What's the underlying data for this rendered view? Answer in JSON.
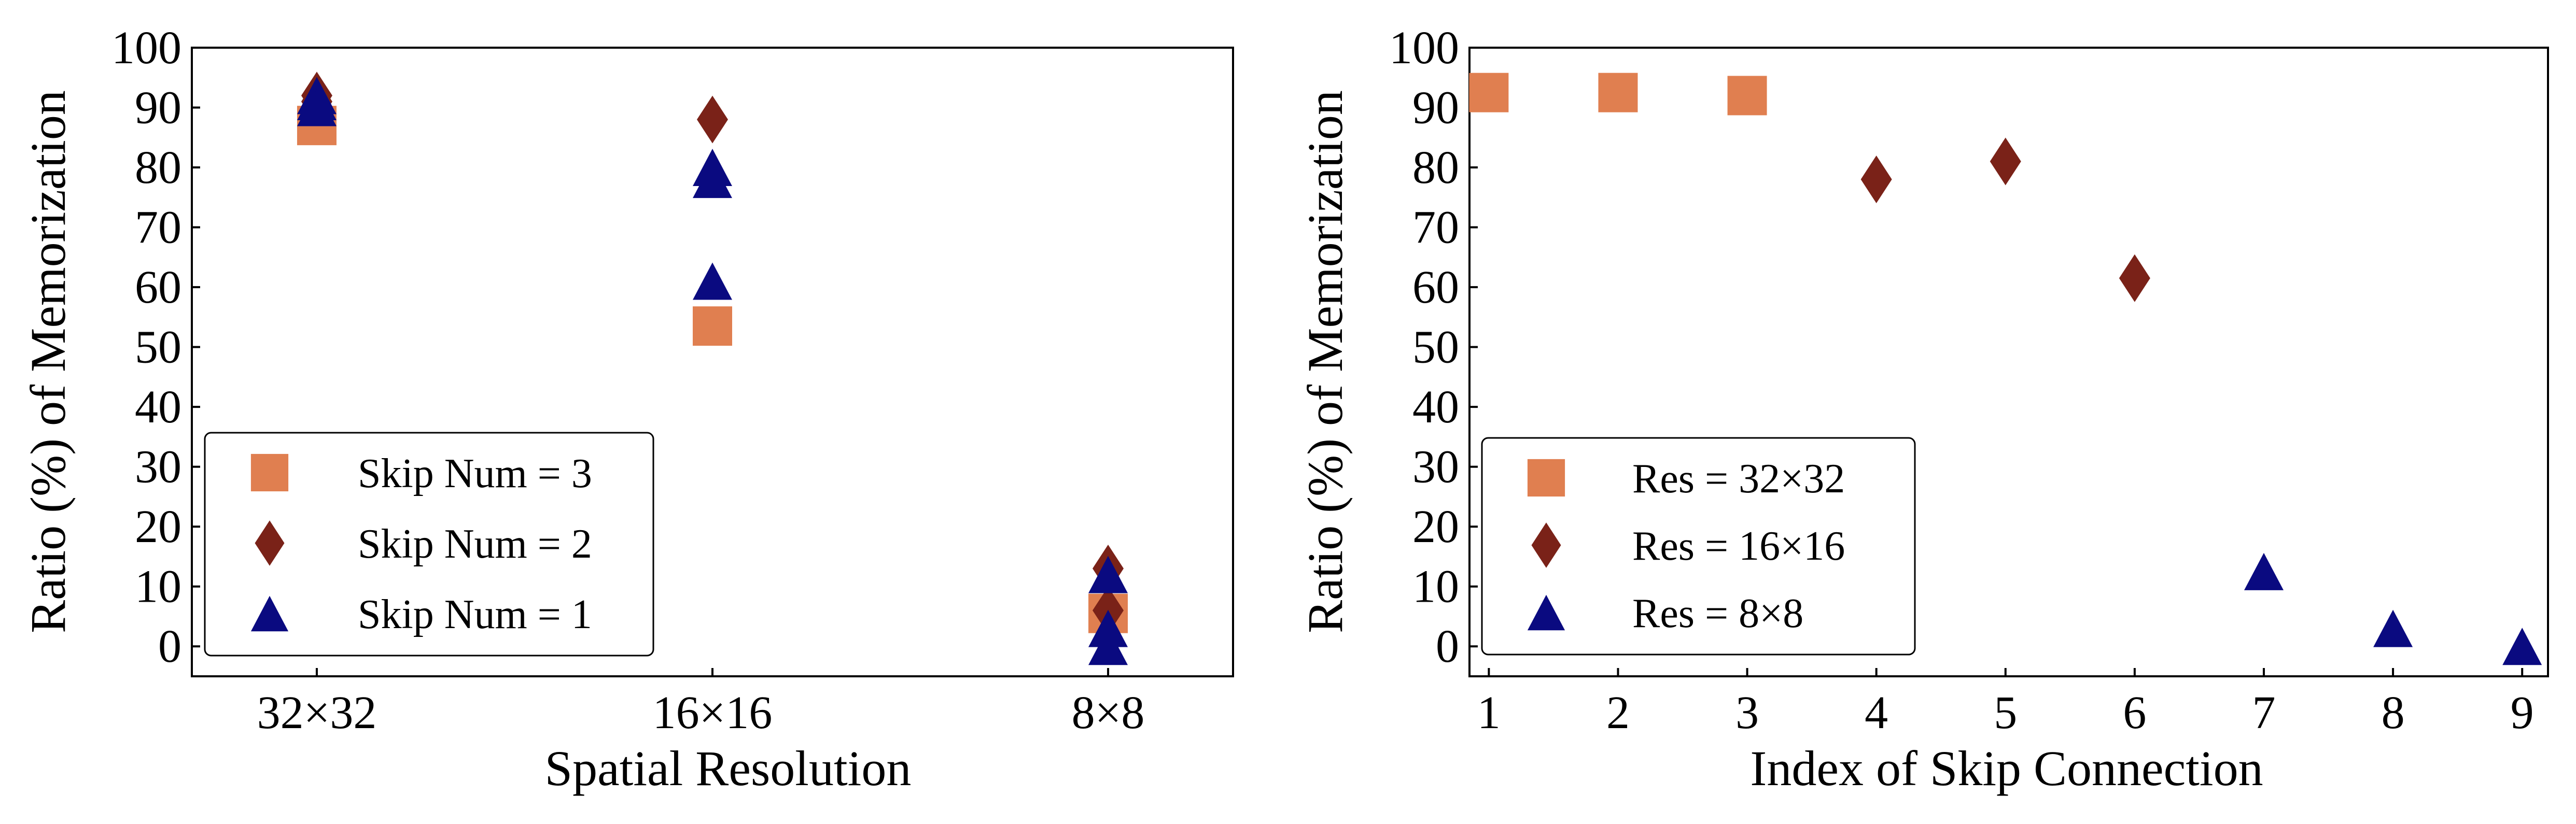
{
  "colors": {
    "square": "#E07F50",
    "diamond": "#7A2218",
    "triangle": "#0A0A80"
  },
  "chart_data": [
    {
      "type": "scatter",
      "title": "",
      "xlabel": "Spatial Resolution",
      "ylabel": "Ratio (%) of Memorization",
      "categories": [
        "32×32",
        "16×16",
        "8×8"
      ],
      "ylim": [
        -5,
        100
      ],
      "yticks": [
        "0",
        "10",
        "20",
        "30",
        "40",
        "50",
        "60",
        "70",
        "80",
        "90",
        "100"
      ],
      "grid": false,
      "legend_position": "bottom-left",
      "series": [
        {
          "name": "Skip Num = 3",
          "marker": "square",
          "points": [
            {
              "x": "32×32",
              "y": 87
            },
            {
              "x": "16×16",
              "y": 53.5
            },
            {
              "x": "8×8",
              "y": 5.5
            }
          ]
        },
        {
          "name": "Skip Num = 2",
          "marker": "diamond",
          "points": [
            {
              "x": "32×32",
              "y": 92
            },
            {
              "x": "32×32",
              "y": 91
            },
            {
              "x": "16×16",
              "y": 88
            },
            {
              "x": "8×8",
              "y": 13
            },
            {
              "x": "8×8",
              "y": 6
            }
          ]
        },
        {
          "name": "Skip Num = 1",
          "marker": "triangle",
          "points": [
            {
              "x": "32×32",
              "y": 92
            },
            {
              "x": "32×32",
              "y": 91
            },
            {
              "x": "32×32",
              "y": 90
            },
            {
              "x": "16×16",
              "y": 80
            },
            {
              "x": "16×16",
              "y": 78
            },
            {
              "x": "16×16",
              "y": 61
            },
            {
              "x": "8×8",
              "y": 12
            },
            {
              "x": "8×8",
              "y": 3
            },
            {
              "x": "8×8",
              "y": 0
            }
          ]
        }
      ]
    },
    {
      "type": "scatter",
      "title": "",
      "xlabel": "Index of Skip Connection",
      "ylabel": "Ratio (%) of Memorization",
      "xlim": [
        0.85,
        9.2
      ],
      "xticks": [
        "1",
        "2",
        "3",
        "4",
        "5",
        "6",
        "7",
        "8",
        "9"
      ],
      "ylim": [
        -5,
        100
      ],
      "yticks": [
        "0",
        "10",
        "20",
        "30",
        "40",
        "50",
        "60",
        "70",
        "80",
        "90",
        "100"
      ],
      "grid": false,
      "legend_position": "bottom-left",
      "series": [
        {
          "name": "Res = 32×32",
          "marker": "square",
          "points": [
            {
              "x": 1,
              "y": 92.5
            },
            {
              "x": 2,
              "y": 92.5
            },
            {
              "x": 3,
              "y": 92
            }
          ]
        },
        {
          "name": "Res = 16×16",
          "marker": "diamond",
          "points": [
            {
              "x": 4,
              "y": 78
            },
            {
              "x": 5,
              "y": 81
            },
            {
              "x": 6,
              "y": 61.5
            }
          ]
        },
        {
          "name": "Res = 8×8",
          "marker": "triangle",
          "points": [
            {
              "x": 7,
              "y": 12.5
            },
            {
              "x": 8,
              "y": 3
            },
            {
              "x": 9,
              "y": 0
            }
          ]
        }
      ]
    }
  ]
}
